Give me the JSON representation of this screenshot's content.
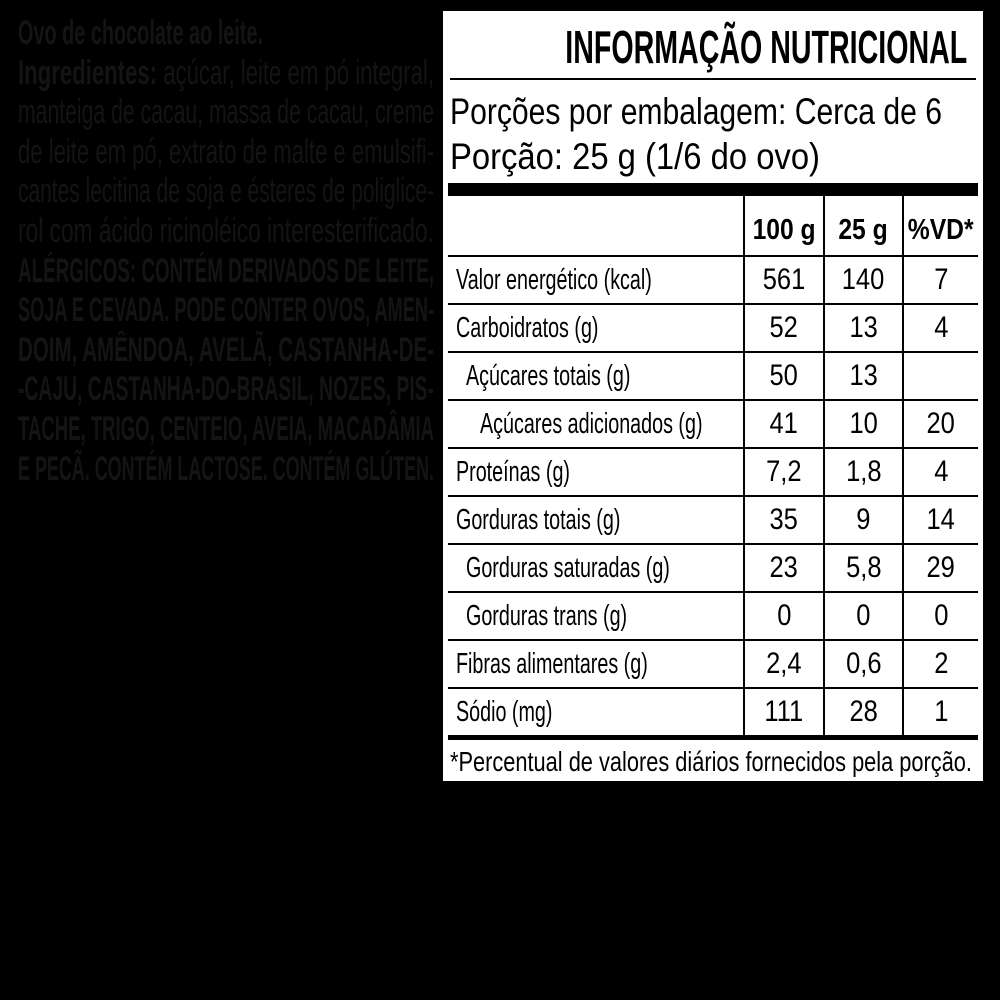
{
  "left_panel": {
    "lines": [
      {
        "bold": "Ovo de chocolate ao leite.",
        "normal": ""
      },
      {
        "bold": "Ingredientes: ",
        "normal": "açúcar, leite em pó integral,"
      },
      {
        "bold": "",
        "normal": "manteiga de cacau, massa de cacau, creme"
      },
      {
        "bold": "",
        "normal": "de leite em pó, extrato de malte e emulsifi-"
      },
      {
        "bold": "",
        "normal": "cantes lecitina de soja e ésteres de poliglice-"
      },
      {
        "bold": "",
        "normal": "rol com ácido ricinoléico interesterificado."
      },
      {
        "bold": "ALÉRGICOS: CONTÉM DERIVADOS DE LEITE,",
        "normal": ""
      },
      {
        "bold": "SOJA E CEVADA. PODE CONTER OVOS, AMEN-",
        "normal": ""
      },
      {
        "bold": "DOIM, AMÊNDOA, AVELÃ, CASTANHA-DE-",
        "normal": ""
      },
      {
        "bold": "-CAJU, CASTANHA-DO-BRASIL, NOZES, PIS-",
        "normal": ""
      },
      {
        "bold": "TACHE, TRIGO, CENTEIO, AVEIA, MACADÂMIA",
        "normal": ""
      },
      {
        "bold": "E PECÃ. CONTÉM LACTOSE. CONTÉM GLÚTEN.",
        "normal": ""
      }
    ]
  },
  "nutrition_label": {
    "title": "INFORMAÇÃO NUTRICIONAL",
    "servings_line": "Porções por embalagem: Cerca de 6",
    "serving_size_line": "Porção: 25 g (1/6 do ovo)",
    "columns": [
      "100 g",
      "25 g",
      "%VD*"
    ],
    "rows": [
      {
        "label": "Valor energético (kcal)",
        "indent": 0,
        "per_100g": "561",
        "per_serving": "140",
        "vd_percent": "7"
      },
      {
        "label": "Carboidratos (g)",
        "indent": 0,
        "per_100g": "52",
        "per_serving": "13",
        "vd_percent": "4"
      },
      {
        "label": "Açúcares totais (g)",
        "indent": 1,
        "per_100g": "50",
        "per_serving": "13",
        "vd_percent": ""
      },
      {
        "label": "Açúcares adicionados (g)",
        "indent": 2,
        "per_100g": "41",
        "per_serving": "10",
        "vd_percent": "20"
      },
      {
        "label": "Proteínas (g)",
        "indent": 0,
        "per_100g": "7,2",
        "per_serving": "1,8",
        "vd_percent": "4"
      },
      {
        "label": "Gorduras totais (g)",
        "indent": 0,
        "per_100g": "35",
        "per_serving": "9",
        "vd_percent": "14"
      },
      {
        "label": "Gorduras saturadas (g)",
        "indent": 1,
        "per_100g": "23",
        "per_serving": "5,8",
        "vd_percent": "29"
      },
      {
        "label": "Gorduras trans (g)",
        "indent": 1,
        "per_100g": "0",
        "per_serving": "0",
        "vd_percent": "0"
      },
      {
        "label": "Fibras alimentares (g)",
        "indent": 0,
        "per_100g": "2,4",
        "per_serving": "0,6",
        "vd_percent": "2"
      },
      {
        "label": "Sódio (mg)",
        "indent": 0,
        "per_100g": "111",
        "per_serving": "28",
        "vd_percent": "1"
      }
    ],
    "footnote": "*Percentual de valores diários fornecidos pela porção.",
    "colors": {
      "background": "#000000",
      "panel": "#ffffff",
      "text": "#000000",
      "faint_ingredients_text": "#141414"
    }
  }
}
